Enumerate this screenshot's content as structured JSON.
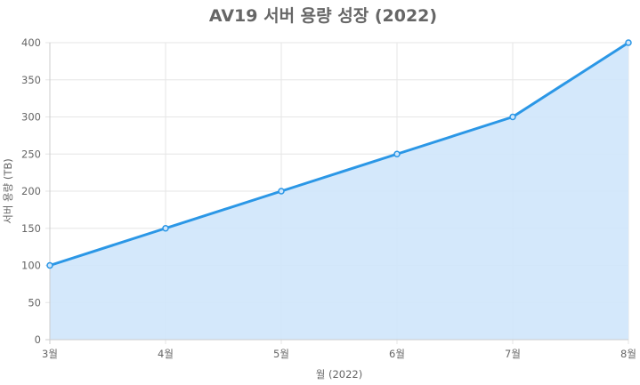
{
  "chart_data": {
    "type": "area",
    "title": "AV19 서버 용량 성장 (2022)",
    "xlabel": "월 (2022)",
    "ylabel": "서버 용량 (TB)",
    "categories": [
      "3월",
      "4월",
      "5월",
      "6월",
      "7월",
      "8월"
    ],
    "values": [
      100,
      150,
      200,
      250,
      300,
      400
    ],
    "ylim": [
      0,
      400
    ],
    "yticks": [
      0,
      50,
      100,
      150,
      200,
      250,
      300,
      350,
      400
    ],
    "grid": true,
    "legend": "none",
    "colors": {
      "line": "#2b97e6",
      "fill": "#cfe6fb",
      "grid": "#e6e6e6",
      "axis": "#cccccc",
      "text": "#666666"
    }
  }
}
